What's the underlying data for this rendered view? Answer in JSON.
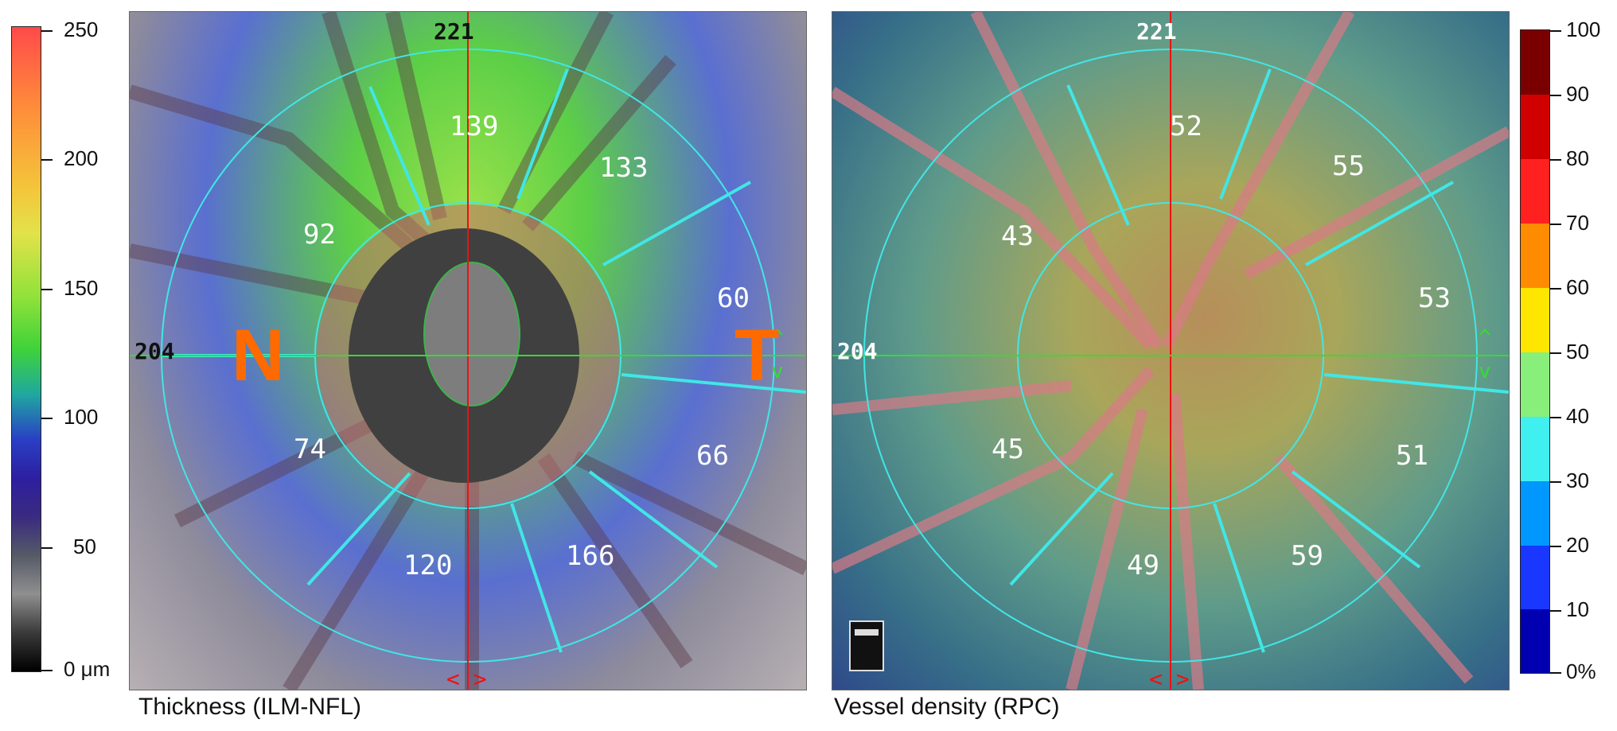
{
  "left_colorbar": {
    "labels": [
      "250",
      "200",
      "150",
      "100",
      "50",
      "0 μm"
    ]
  },
  "right_colorbar": {
    "labels": [
      "100",
      "90",
      "80",
      "70",
      "60",
      "50",
      "40",
      "30",
      "20",
      "10",
      "0%"
    ],
    "colors": [
      "#7a0000",
      "#d00000",
      "#ff2020",
      "#ff8c00",
      "#ffe600",
      "#88f07a",
      "#40f0f0",
      "#0097ff",
      "#1a37ff",
      "#0000b0"
    ]
  },
  "left_panel": {
    "caption": "Thickness (ILM-NFL)",
    "top_value": "221",
    "left_value": "204",
    "letter_n": "N",
    "letter_t": "T",
    "sectors": [
      "139",
      "133",
      "92",
      "60",
      "74",
      "66",
      "120",
      "166"
    ]
  },
  "right_panel": {
    "caption": "Vessel density (RPC)",
    "top_value": "221",
    "left_value": "204",
    "sectors": [
      "52",
      "55",
      "43",
      "53",
      "45",
      "51",
      "49",
      "59"
    ]
  }
}
